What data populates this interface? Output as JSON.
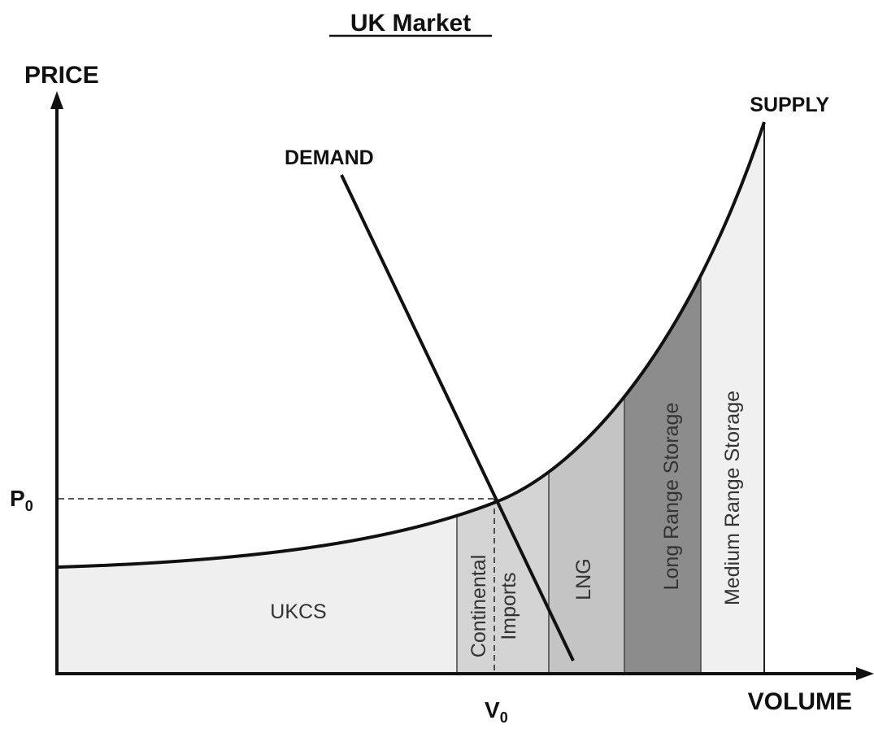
{
  "title": "UK Market",
  "axes": {
    "y_label": "PRICE",
    "x_label": "VOLUME"
  },
  "curves": {
    "supply": "SUPPLY",
    "demand": "DEMAND"
  },
  "equilibrium": {
    "price": {
      "main": "P",
      "sub": "0"
    },
    "volume": {
      "main": "V",
      "sub": "0"
    }
  },
  "regions": [
    "UKCS",
    "Continental",
    "Imports",
    "LNG",
    "Long Range Storage",
    "Medium Range Storage"
  ]
}
